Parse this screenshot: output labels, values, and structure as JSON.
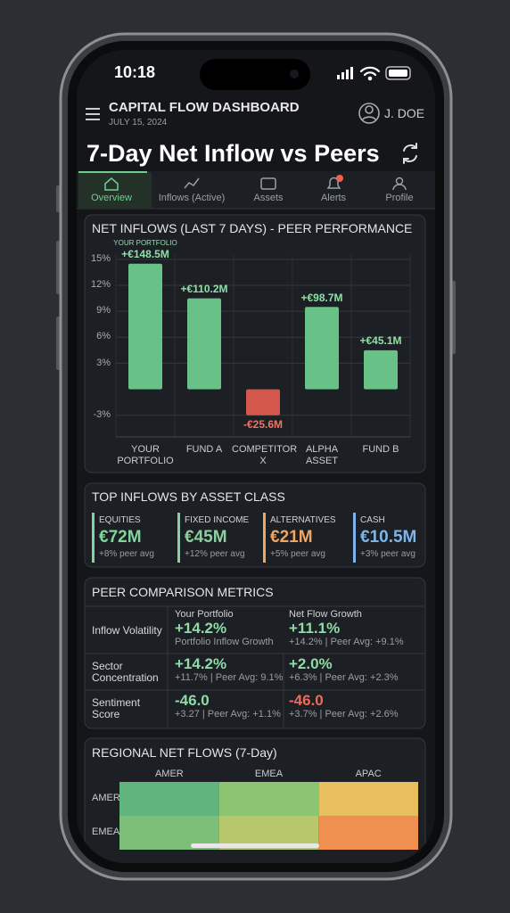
{
  "status_bar": {
    "time": "10:18"
  },
  "header": {
    "title": "CAPITAL FLOW DASHBOARD",
    "date": "JULY 15, 2024",
    "user": "J. DOE"
  },
  "page_title": "7-Day Net Inflow vs Peers",
  "tabs": [
    "Overview",
    "Inflows (Active)",
    "Assets",
    "Alerts",
    "Profile"
  ],
  "active_tab": 0,
  "chart_data": {
    "type": "bar",
    "title": "NET INFLOWS (LAST 7 DAYS) - PEER PERFORMANCE",
    "annotation": "YOUR PORTFOLIO",
    "categories": [
      "YOUR PORTFOLIO",
      "FUND A",
      "COMPETITOR X",
      "ALPHA ASSET",
      "FUND B"
    ],
    "values": [
      14.5,
      10.5,
      -3,
      9.5,
      4.5
    ],
    "bar_labels": [
      "+€148.5M",
      "+€110.2M",
      "-€25.6M",
      "+€98.7M",
      "+€45.1M"
    ],
    "color": "#6fcf8f",
    "negative_color": "#e35d4f",
    "ylim": [
      -5.5,
      15.5
    ],
    "yticks": [
      {
        "value": 15,
        "label": "15%"
      },
      {
        "value": 12,
        "label": "12%"
      },
      {
        "value": 9,
        "label": "9%"
      },
      {
        "value": 6,
        "label": "6%"
      },
      {
        "value": 3,
        "label": "3%"
      },
      {
        "value": -3,
        "label": "-3%"
      }
    ],
    "grid": true
  },
  "asset_classes": {
    "title": "TOP INFLOWS BY ASSET CLASS",
    "items": [
      {
        "name": "EQUITIES",
        "value": "€72M",
        "note": "+8% peer avg",
        "color": "#7fd69b"
      },
      {
        "name": "FIXED INCOME",
        "value": "€45M",
        "note": "+12% peer avg",
        "color": "#8ccf9f"
      },
      {
        "name": "ALTERNATIVES",
        "value": "€21M",
        "note": "+5% peer avg",
        "color": "#f0a562"
      },
      {
        "name": "CASH",
        "value": "€10.5M",
        "note": "+3% peer avg",
        "color": "#7db5ea"
      }
    ]
  },
  "peer_metrics": {
    "title": "PEER COMPARISON METRICS",
    "columns": [
      "Your Portfolio",
      "Net Flow Growth"
    ],
    "rows": [
      {
        "label": "Inflow Volatility",
        "portfolio": "+14.2%",
        "portfolio_note": "Portfolio Inflow Growth",
        "growth": "+11.1%",
        "growth_note": "+14.2% | Peer Avg: +9.1%",
        "growth_color": "#8fdba6"
      },
      {
        "label": "Sector Concentration",
        "portfolio": "+14.2%",
        "portfolio_note": "+11.7% | Peer Avg: 9.1%",
        "growth": "+2.0%",
        "growth_note": "+6.3% | Peer Avg: +2.3%",
        "growth_color": "#8fdba6"
      },
      {
        "label": "Sentiment Score",
        "portfolio": "-46.0",
        "portfolio_note": "+3.27 | Peer Avg: +1.1%",
        "growth": "-46.0",
        "growth_note": "+3.7% | Peer Avg: +2.6%",
        "growth_color": "#f06a5c"
      }
    ]
  },
  "regional": {
    "title": "REGIONAL NET FLOWS (7-Day)",
    "columns": [
      "AMER",
      "EMEA",
      "APAC"
    ],
    "rows": [
      "AMER",
      "EMEA"
    ],
    "colors": [
      [
        "#5fb57b",
        "#8dc472",
        "#e8bf5e"
      ],
      [
        "#7dbe78",
        "#b8c76a",
        "#ef8f50"
      ]
    ]
  }
}
